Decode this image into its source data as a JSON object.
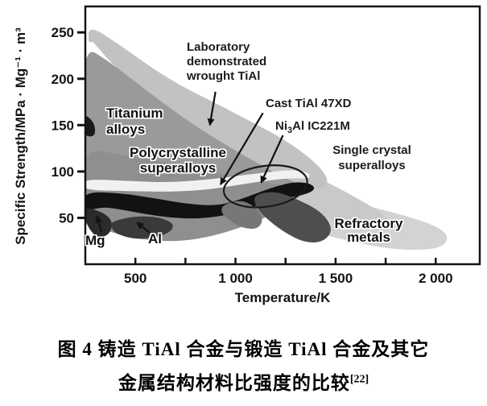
{
  "figure": {
    "caption_line1": "图 4  铸造 TiAl 合金与锻造 TiAl 合金及其它",
    "caption_line2": "金属结构材料比强度的比较",
    "caption_ref": "[22]"
  },
  "chart_data": {
    "type": "area",
    "title": "",
    "xlabel": "Temperature/K",
    "ylabel": "Specific Strength/MPa · Mg⁻¹ · m³",
    "xlim": [
      250,
      2220
    ],
    "ylim": [
      0,
      278
    ],
    "grid": false,
    "x_ticks": [
      {
        "v": 500,
        "label": "500"
      },
      {
        "v": 1000,
        "label": "1 000"
      },
      {
        "v": 1500,
        "label": "1 500"
      },
      {
        "v": 2000,
        "label": "2 000"
      }
    ],
    "x_minor_ticks": [
      750,
      1250,
      1750
    ],
    "y_ticks": [
      {
        "v": 50,
        "label": "50"
      },
      {
        "v": 100,
        "label": "100"
      },
      {
        "v": 150,
        "label": "150"
      },
      {
        "v": 200,
        "label": "200"
      },
      {
        "v": 250,
        "label": "250"
      }
    ],
    "regions": [
      {
        "name": "refractory-tail",
        "color": "#d3d3d3",
        "points": [
          [
            960,
            70
          ],
          [
            1030,
            77
          ],
          [
            1150,
            82
          ],
          [
            1310,
            83
          ],
          [
            1430,
            79
          ],
          [
            1530,
            72
          ],
          [
            1640,
            64
          ],
          [
            1800,
            55
          ],
          [
            1930,
            47
          ],
          [
            2030,
            38
          ],
          [
            2065,
            28
          ],
          [
            2030,
            18
          ],
          [
            1915,
            15
          ],
          [
            1750,
            17
          ],
          [
            1590,
            24
          ],
          [
            1430,
            32
          ],
          [
            1270,
            42
          ],
          [
            1130,
            52
          ],
          [
            1020,
            60
          ],
          [
            960,
            64
          ]
        ]
      },
      {
        "name": "single-crystal-superalloys",
        "color": "#c9c9c9",
        "points": [
          [
            1060,
            110
          ],
          [
            1200,
            113
          ],
          [
            1340,
            101
          ],
          [
            1480,
            86
          ],
          [
            1610,
            71
          ],
          [
            1720,
            57
          ],
          [
            1775,
            45
          ],
          [
            1715,
            37
          ],
          [
            1600,
            39
          ],
          [
            1480,
            47
          ],
          [
            1360,
            59
          ],
          [
            1245,
            73
          ],
          [
            1155,
            87
          ],
          [
            1085,
            99
          ]
        ]
      },
      {
        "name": "wrought-tial-envelope",
        "color": "#c2c2c2",
        "points": [
          [
            268,
            258
          ],
          [
            420,
            237
          ],
          [
            560,
            215
          ],
          [
            720,
            193
          ],
          [
            880,
            176
          ],
          [
            1040,
            158
          ],
          [
            1200,
            140
          ],
          [
            1330,
            122
          ],
          [
            1430,
            103
          ],
          [
            1465,
            90
          ],
          [
            1440,
            80
          ],
          [
            1360,
            83
          ],
          [
            1260,
            92
          ],
          [
            1150,
            104
          ],
          [
            1010,
            120
          ],
          [
            870,
            138
          ],
          [
            730,
            158
          ],
          [
            590,
            180
          ],
          [
            470,
            200
          ],
          [
            380,
            217
          ],
          [
            315,
            233
          ],
          [
            285,
            241
          ],
          [
            264,
            238
          ]
        ]
      },
      {
        "name": "titanium-alloys",
        "color": "#9a9a9a",
        "points": [
          [
            235,
            236
          ],
          [
            360,
            220
          ],
          [
            480,
            200
          ],
          [
            600,
            180
          ],
          [
            740,
            158
          ],
          [
            880,
            138
          ],
          [
            1020,
            120
          ],
          [
            1160,
            103
          ],
          [
            1270,
            91
          ],
          [
            1340,
            84
          ],
          [
            1270,
            80
          ],
          [
            1150,
            82
          ],
          [
            1000,
            86
          ],
          [
            850,
            90
          ],
          [
            700,
            94
          ],
          [
            550,
            98
          ],
          [
            400,
            103
          ],
          [
            300,
            107
          ],
          [
            235,
            110
          ]
        ]
      },
      {
        "name": "polycrystalline-superalloys",
        "color": "#8f8f8f",
        "points": [
          [
            235,
            126
          ],
          [
            420,
            118
          ],
          [
            600,
            112
          ],
          [
            780,
            104
          ],
          [
            960,
            96
          ],
          [
            1120,
            90
          ],
          [
            1250,
            84
          ],
          [
            1330,
            78
          ],
          [
            1250,
            62
          ],
          [
            1150,
            50
          ],
          [
            1020,
            39
          ],
          [
            880,
            30
          ],
          [
            740,
            25
          ],
          [
            600,
            25
          ],
          [
            470,
            29
          ],
          [
            360,
            36
          ],
          [
            280,
            42
          ],
          [
            235,
            44
          ]
        ]
      },
      {
        "name": "gap-band",
        "color": "#f1f1f1",
        "points": [
          [
            235,
            92
          ],
          [
            450,
            90
          ],
          [
            650,
            88
          ],
          [
            850,
            91
          ],
          [
            1000,
            95
          ],
          [
            1150,
            99
          ],
          [
            1280,
            102
          ],
          [
            1370,
            99
          ],
          [
            1370,
            92
          ],
          [
            1280,
            93
          ],
          [
            1150,
            90
          ],
          [
            1000,
            85
          ],
          [
            850,
            80
          ],
          [
            650,
            78
          ],
          [
            450,
            79
          ],
          [
            235,
            80
          ]
        ]
      },
      {
        "name": "cast-tial-band",
        "color": "#121212",
        "points": [
          [
            235,
            78
          ],
          [
            420,
            77
          ],
          [
            600,
            71
          ],
          [
            760,
            65
          ],
          [
            900,
            63
          ],
          [
            1000,
            68
          ],
          [
            1100,
            76
          ],
          [
            1200,
            84
          ],
          [
            1300,
            89
          ],
          [
            1380,
            87
          ],
          [
            1400,
            80
          ],
          [
            1330,
            74
          ],
          [
            1240,
            71
          ],
          [
            1140,
            66
          ],
          [
            1040,
            58
          ],
          [
            930,
            52
          ],
          [
            810,
            49
          ],
          [
            680,
            50
          ],
          [
            550,
            54
          ],
          [
            430,
            59
          ],
          [
            330,
            62
          ],
          [
            235,
            56
          ]
        ]
      },
      {
        "name": "titanium-notch",
        "color": "#1a1a1a",
        "points": [
          [
            238,
            163
          ],
          [
            292,
            154
          ],
          [
            302,
            141
          ],
          [
            280,
            137
          ],
          [
            238,
            140
          ]
        ]
      },
      {
        "name": "magnesium",
        "color": "#2b2b2b",
        "points": [
          [
            245,
            62
          ],
          [
            340,
            56
          ],
          [
            388,
            46
          ],
          [
            372,
            32
          ],
          [
            312,
            28
          ],
          [
            268,
            38
          ],
          [
            248,
            50
          ]
        ]
      },
      {
        "name": "aluminum",
        "color": "#3a3a3a",
        "points": [
          [
            376,
            46
          ],
          [
            500,
            52
          ],
          [
            620,
            51
          ],
          [
            700,
            43
          ],
          [
            662,
            32
          ],
          [
            520,
            26
          ],
          [
            408,
            32
          ],
          [
            380,
            39
          ]
        ]
      },
      {
        "name": "refractory-transition",
        "color": "#777777",
        "points": [
          [
            935,
            64
          ],
          [
            1030,
            70
          ],
          [
            1110,
            60
          ],
          [
            1140,
            47
          ],
          [
            1105,
            37
          ],
          [
            1020,
            40
          ],
          [
            955,
            50
          ],
          [
            928,
            56
          ]
        ]
      },
      {
        "name": "refractory-metals",
        "color": "#4e4e4e",
        "points": [
          [
            1090,
            75
          ],
          [
            1200,
            79
          ],
          [
            1310,
            70
          ],
          [
            1410,
            59
          ],
          [
            1470,
            46
          ],
          [
            1480,
            33
          ],
          [
            1425,
            23
          ],
          [
            1340,
            24
          ],
          [
            1255,
            33
          ],
          [
            1165,
            47
          ],
          [
            1100,
            62
          ]
        ]
      }
    ],
    "ellipse_outline": {
      "name": "cast-tial-47xd-outline",
      "cx": 1150,
      "cy": 84,
      "rx_k": 210,
      "ry_s": 22,
      "rotate_deg": -8,
      "stroke": "#1a1a1a"
    },
    "arrows": [
      {
        "name": "laboratory-arrow",
        "from": [
          900,
          186
        ],
        "to": [
          872,
          150
        ]
      },
      {
        "name": "cast-arrow",
        "from": [
          1137,
          163
        ],
        "to": [
          925,
          86
        ]
      },
      {
        "name": "ni3al-arrow",
        "from": [
          1237,
          139
        ],
        "to": [
          1128,
          88
        ]
      },
      {
        "name": "mg-arrow",
        "from": [
          330,
          35
        ],
        "to": [
          308,
          52
        ]
      },
      {
        "name": "al-arrow",
        "from": [
          571,
          34
        ],
        "to": [
          508,
          45
        ]
      }
    ],
    "labels": {
      "laboratory": {
        "lines": [
          "Laboratory",
          "demonstrated",
          "wrought TiAl"
        ]
      },
      "titanium": {
        "lines": [
          "Titanium",
          "alloys"
        ]
      },
      "polycrystalline": {
        "lines": [
          "Polycrystalline",
          "superalloys"
        ]
      },
      "cast": {
        "text": "Cast TiAl 47XD"
      },
      "ni3al": {
        "pre": "Ni",
        "sub": "3",
        "post": "Al IC221M"
      },
      "single_crystal": {
        "lines": [
          "Single crystal",
          "superalloys"
        ]
      },
      "refractory": {
        "lines": [
          "Refractory",
          "metals"
        ]
      },
      "mg": {
        "text": "Mg"
      },
      "al": {
        "text": "Al"
      }
    }
  }
}
